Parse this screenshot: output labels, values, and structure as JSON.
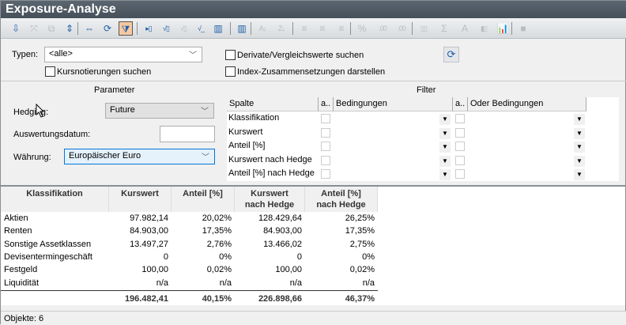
{
  "window": {
    "title": "Exposure-Analyse"
  },
  "toolbar": {
    "buttons": [
      {
        "icon": "import-icon",
        "glyph": "⇩",
        "enabled": true
      },
      {
        "icon": "expand-icon",
        "glyph": "⤧",
        "enabled": false
      },
      {
        "icon": "copy-icon",
        "glyph": "⧉",
        "enabled": false
      },
      {
        "icon": "fit-height-icon",
        "glyph": "⇕",
        "enabled": true
      },
      {
        "icon": "fit-width-icon",
        "glyph": "⇔",
        "enabled": true
      },
      {
        "icon": "refresh-icon",
        "glyph": "⟳",
        "enabled": true
      },
      {
        "icon": "filter-icon",
        "glyph": "⧩",
        "enabled": true,
        "active": true
      },
      {
        "icon": "column-insert-icon",
        "glyph": "▸▯",
        "enabled": true
      },
      {
        "icon": "column-formula-icon",
        "glyph": "√▯",
        "enabled": true
      },
      {
        "icon": "formula-icon",
        "glyph": "√▯",
        "enabled": false
      },
      {
        "icon": "formula-underline-icon",
        "glyph": "√_",
        "enabled": true
      },
      {
        "icon": "column-settings-icon",
        "glyph": "▥",
        "enabled": true
      },
      {
        "icon": "columns-icon",
        "glyph": "▥",
        "enabled": true
      },
      {
        "icon": "sort-ascending-icon",
        "glyph": "A↓",
        "enabled": false
      },
      {
        "icon": "sort-descending-icon",
        "glyph": "Z↓",
        "enabled": false
      },
      {
        "icon": "align-left-icon",
        "glyph": "≡",
        "enabled": false
      },
      {
        "icon": "align-center-icon",
        "glyph": "≡",
        "enabled": false
      },
      {
        "icon": "align-right-icon",
        "glyph": "≡",
        "enabled": false
      },
      {
        "icon": "percent-icon",
        "glyph": "%",
        "enabled": false
      },
      {
        "icon": "increase-decimals-icon",
        "glyph": ".00",
        "enabled": false
      },
      {
        "icon": "decrease-decimals-icon",
        "glyph": ".00",
        "enabled": false
      },
      {
        "icon": "column-width-icon",
        "glyph": "▯▯",
        "enabled": false
      },
      {
        "icon": "sum-icon",
        "glyph": "Σ",
        "enabled": false
      },
      {
        "icon": "font-icon",
        "glyph": "A",
        "enabled": false
      },
      {
        "icon": "chart-gray-icon",
        "glyph": "▮▯",
        "enabled": false
      },
      {
        "icon": "bar-chart-icon",
        "glyph": "📊",
        "enabled": true
      },
      {
        "icon": "stop-icon",
        "glyph": "■",
        "enabled": false
      }
    ]
  },
  "search": {
    "types_label": "Typen:",
    "types_value": "<alle>",
    "kursnotierungen_label": "Kursnotierungen suchen",
    "kursnotierungen_checked": false,
    "derivate_label": "Derivate/Vergleichswerte suchen",
    "derivate_checked": false,
    "index_label": "Index-Zusammensetzungen darstellen",
    "index_checked": false
  },
  "parameter": {
    "title": "Parameter",
    "hedging_label": "Hedging:",
    "hedging_value": "Future",
    "datum_label": "Auswertungsdatum:",
    "datum_value": "",
    "waehrung_label": "Währung:",
    "waehrung_value": "Europäischer Euro"
  },
  "filter": {
    "title": "Filter",
    "headers": [
      "Spalte",
      "a..",
      "Bedingungen",
      "a..",
      "Oder Bedingungen"
    ],
    "rows": [
      "Klassifikation",
      "Kurswert",
      "Anteil [%]",
      "Kurswert nach Hedge",
      "Anteil [%] nach Hedge"
    ]
  },
  "grid": {
    "headers": [
      "Klassifikation",
      "Kurswert",
      "Anteil [%]",
      "Kurswert\nnach Hedge",
      "Anteil [%]\nnach Hedge"
    ],
    "rows": [
      [
        "Aktien",
        "97.982,14",
        "20,02%",
        "128.429,64",
        "26,25%"
      ],
      [
        "Renten",
        "84.903,00",
        "17,35%",
        "84.903,00",
        "17,35%"
      ],
      [
        "Sonstige Assetklassen",
        "13.497,27",
        "2,76%",
        "13.466,02",
        "2,75%"
      ],
      [
        "Devisentermingeschäft",
        "0",
        "0%",
        "0",
        "0%"
      ],
      [
        "Festgeld",
        "100,00",
        "0,02%",
        "100,00",
        "0,02%"
      ],
      [
        "Liquidität",
        "n/a",
        "n/a",
        "n/a",
        "n/a"
      ]
    ],
    "totals": [
      "",
      "196.482,41",
      "40,15%",
      "226.898,66",
      "46,37%"
    ]
  },
  "status": {
    "text": "Objekte: 6"
  }
}
